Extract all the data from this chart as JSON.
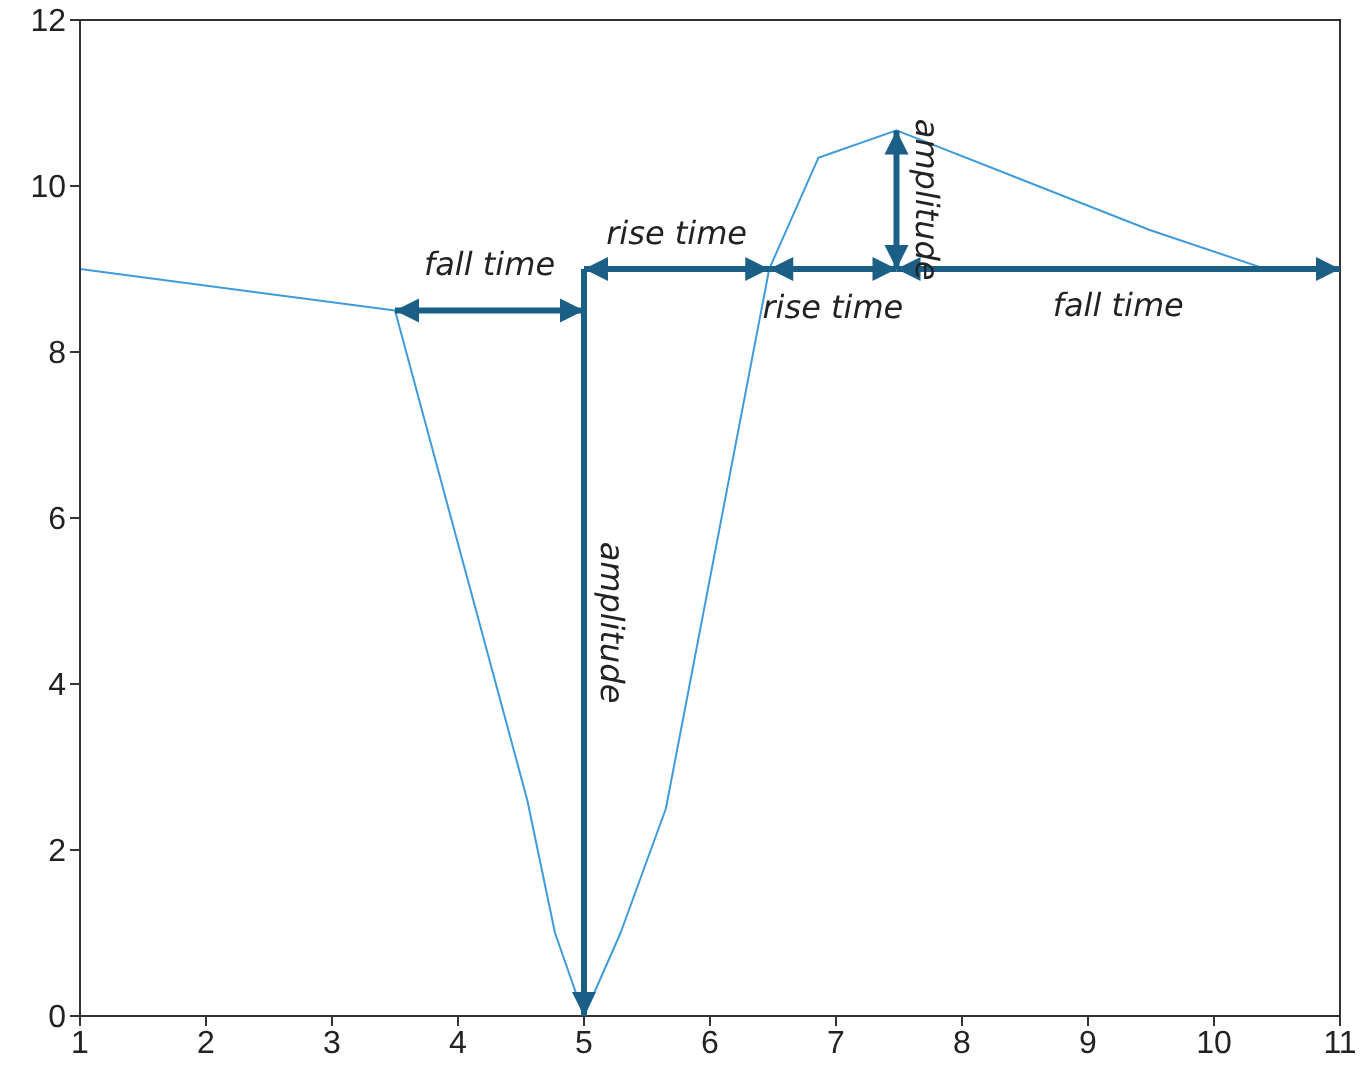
{
  "chart_data": {
    "type": "line",
    "x": [
      1,
      3.5,
      4.55,
      4.77,
      5,
      5.29,
      5.65,
      6.47,
      6.86,
      7.48,
      9.49,
      10.43,
      11
    ],
    "series": [
      {
        "color": "#3f9bdc",
        "values": [
          9,
          8.5,
          2.6,
          1,
          0,
          1,
          2.5,
          9,
          10.34,
          10.67,
          9.47,
          8.99,
          9
        ]
      }
    ],
    "xlim": [
      1,
      11
    ],
    "xticks": [
      1,
      2,
      3,
      4,
      5,
      6,
      7,
      8,
      9,
      10,
      11
    ],
    "ylim": [
      0,
      12
    ],
    "yticks": [
      0,
      2,
      4,
      6,
      8,
      10,
      12
    ],
    "grid": false,
    "legend": false,
    "marker": "none",
    "line_style": "solid",
    "annotations": [
      {
        "text": "fall time",
        "x": 3.5,
        "y": 8.5
      },
      "amplitude",
      {
        "text": "rise time",
        "x": 6.47,
        "y": 9
      },
      {
        "text": "rise time",
        "x": 6.47,
        "y": 9
      },
      {
        "text": "amplitude",
        "x": 7.48,
        "y": 10.67
      },
      "fall time"
    ]
  }
}
